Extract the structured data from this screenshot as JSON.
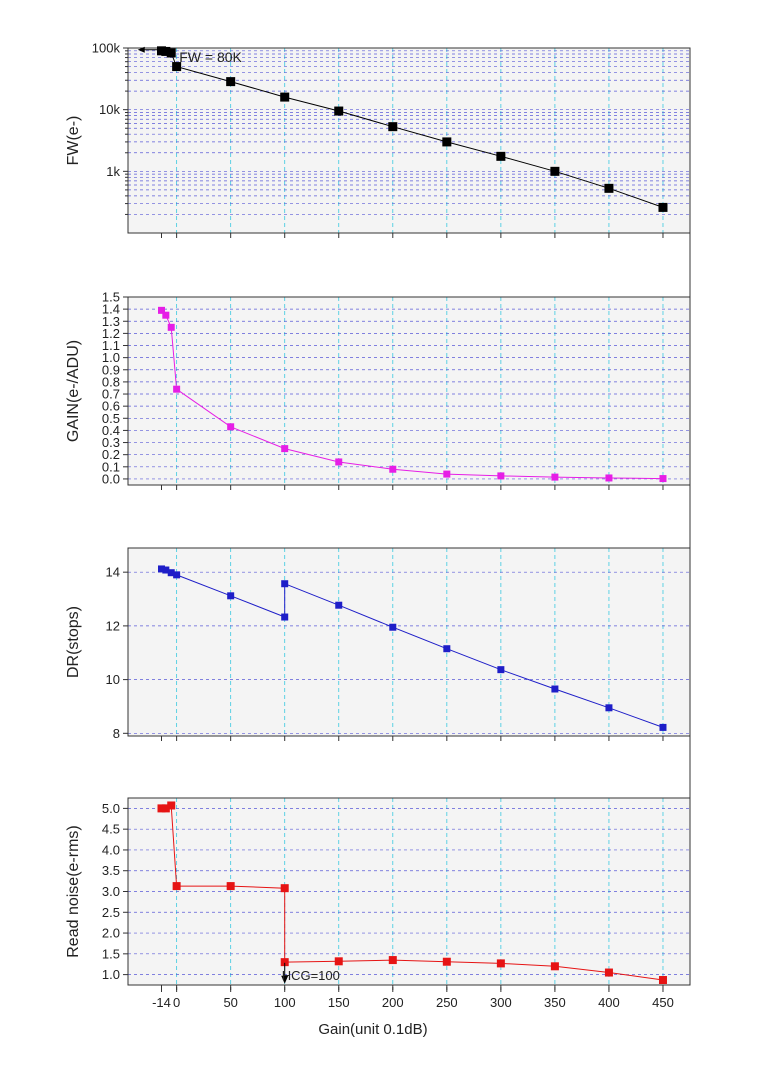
{
  "figure": {
    "xlabel": "Gain(unit 0.1dB)",
    "x_ticks": [
      -14,
      0,
      50,
      100,
      150,
      200,
      250,
      300,
      350,
      400,
      450
    ],
    "x_tick_labels": [
      "-14",
      "0",
      "50",
      "100",
      "150",
      "200",
      "250",
      "300",
      "350",
      "400",
      "450"
    ],
    "xlim": [
      -45,
      475
    ]
  },
  "chart_data": [
    {
      "id": "fw",
      "type": "line",
      "scale": "log",
      "ylabel": "FW(e-)",
      "ylim": [
        100,
        100000
      ],
      "y_ticks": [
        1000,
        10000,
        100000
      ],
      "y_tick_labels": [
        "1k",
        "10k",
        "100k"
      ],
      "color": "#000000",
      "marker_size": 9,
      "grid": true,
      "series": [
        {
          "x": [
            -14,
            -10,
            -5,
            0,
            50,
            100,
            150,
            200,
            250,
            300,
            350,
            400,
            450
          ],
          "values": [
            90000,
            88000,
            83000,
            50000,
            28500,
            16000,
            9500,
            5300,
            3000,
            1750,
            1000,
            530,
            260
          ]
        }
      ],
      "annotations": [
        {
          "text": "FW = 80K",
          "x": -5,
          "y": 72000,
          "arrow_from_x": -36
        }
      ]
    },
    {
      "id": "gain",
      "type": "line",
      "ylabel": "GAIN(e-/ADU)",
      "ylim": [
        -0.05,
        1.5
      ],
      "y_ticks": [
        0.0,
        0.1,
        0.2,
        0.3,
        0.4,
        0.5,
        0.6,
        0.7,
        0.8,
        0.9,
        1.0,
        1.1,
        1.2,
        1.3,
        1.4,
        1.5
      ],
      "y_tick_labels": [
        "0.0",
        "0.1",
        "0.2",
        "0.3",
        "0.4",
        "0.5",
        "0.6",
        "0.7",
        "0.8",
        "0.9",
        "1.0",
        "1.1",
        "1.2",
        "1.3",
        "1.4",
        "1.5"
      ],
      "color": "#e61ee6",
      "marker_size": 7,
      "grid": true,
      "series": [
        {
          "x": [
            -14,
            -10,
            -5,
            0,
            50,
            100,
            150,
            200,
            250,
            300,
            350,
            400,
            450
          ],
          "values": [
            1.39,
            1.35,
            1.25,
            0.74,
            0.43,
            0.25,
            0.14,
            0.08,
            0.04,
            0.025,
            0.015,
            0.008,
            0.003
          ]
        }
      ]
    },
    {
      "id": "dr",
      "type": "line",
      "ylabel": "DR(stops)",
      "ylim": [
        7.9,
        14.9
      ],
      "y_ticks": [
        8,
        10,
        12,
        14
      ],
      "y_tick_labels": [
        "8",
        "10",
        "12",
        "14"
      ],
      "color": "#1e1ec8",
      "marker_size": 7,
      "grid": true,
      "series": [
        {
          "x": [
            -14,
            -10,
            -5,
            0,
            50,
            100,
            100,
            150,
            200,
            250,
            300,
            350,
            400,
            450
          ],
          "values": [
            14.12,
            14.08,
            13.98,
            13.9,
            13.12,
            12.33,
            13.57,
            12.77,
            11.95,
            11.15,
            10.37,
            9.65,
            8.95,
            8.22
          ]
        }
      ]
    },
    {
      "id": "rn",
      "type": "line",
      "ylabel": "Read noise(e-rms)",
      "ylim": [
        0.75,
        5.25
      ],
      "y_ticks": [
        1.0,
        1.5,
        2.0,
        2.5,
        3.0,
        3.5,
        4.0,
        4.5,
        5.0
      ],
      "y_tick_labels": [
        "1.0",
        "1.5",
        "2.0",
        "2.5",
        "3.0",
        "3.5",
        "4.0",
        "4.5",
        "5.0"
      ],
      "color": "#e61414",
      "marker_size": 8,
      "grid": true,
      "series": [
        {
          "x": [
            -14,
            -10,
            -5,
            0,
            50,
            100,
            100,
            150,
            200,
            250,
            300,
            350,
            400,
            450
          ],
          "values": [
            5.0,
            5.0,
            5.07,
            3.13,
            3.13,
            3.08,
            1.3,
            1.32,
            1.35,
            1.31,
            1.27,
            1.2,
            1.05,
            0.87
          ]
        }
      ],
      "annotations": [
        {
          "text": "HCG=100",
          "x": 100,
          "y": 1.14,
          "arrow_to_y": 0.78
        }
      ]
    }
  ]
}
